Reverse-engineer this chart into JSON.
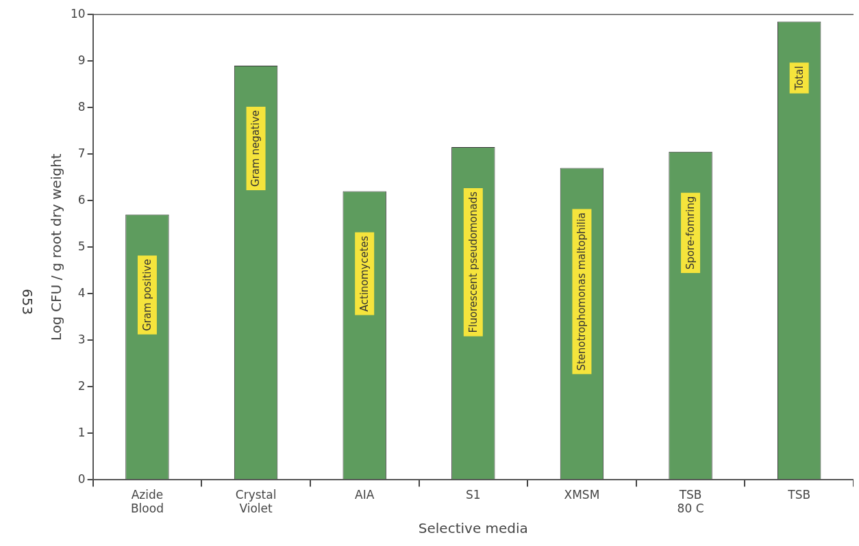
{
  "chart_data": {
    "type": "bar",
    "xlabel": "Selective media",
    "ylabel": "Log CFU / g root dry weight",
    "categories": [
      "Azide\nBlood",
      "Crystal\nViolet",
      "AIA",
      "S1",
      "XMSM",
      "TSB\n80 C",
      "TSB"
    ],
    "values": [
      5.7,
      8.9,
      6.2,
      7.15,
      6.7,
      7.05,
      9.85
    ],
    "color": "#5e9c5e",
    "ylim": [
      0,
      10
    ],
    "yticks": [
      0,
      1,
      2,
      3,
      4,
      5,
      6,
      7,
      8,
      9,
      10
    ],
    "grid": false,
    "legend": false,
    "annotations": [
      "Gram positive",
      "Gram negative",
      "Actinomycetes",
      "Fluorescent pseudomonads",
      "Stenotrophomonas maltophilia",
      "Spore-fomring",
      "Total",
      "653"
    ]
  }
}
